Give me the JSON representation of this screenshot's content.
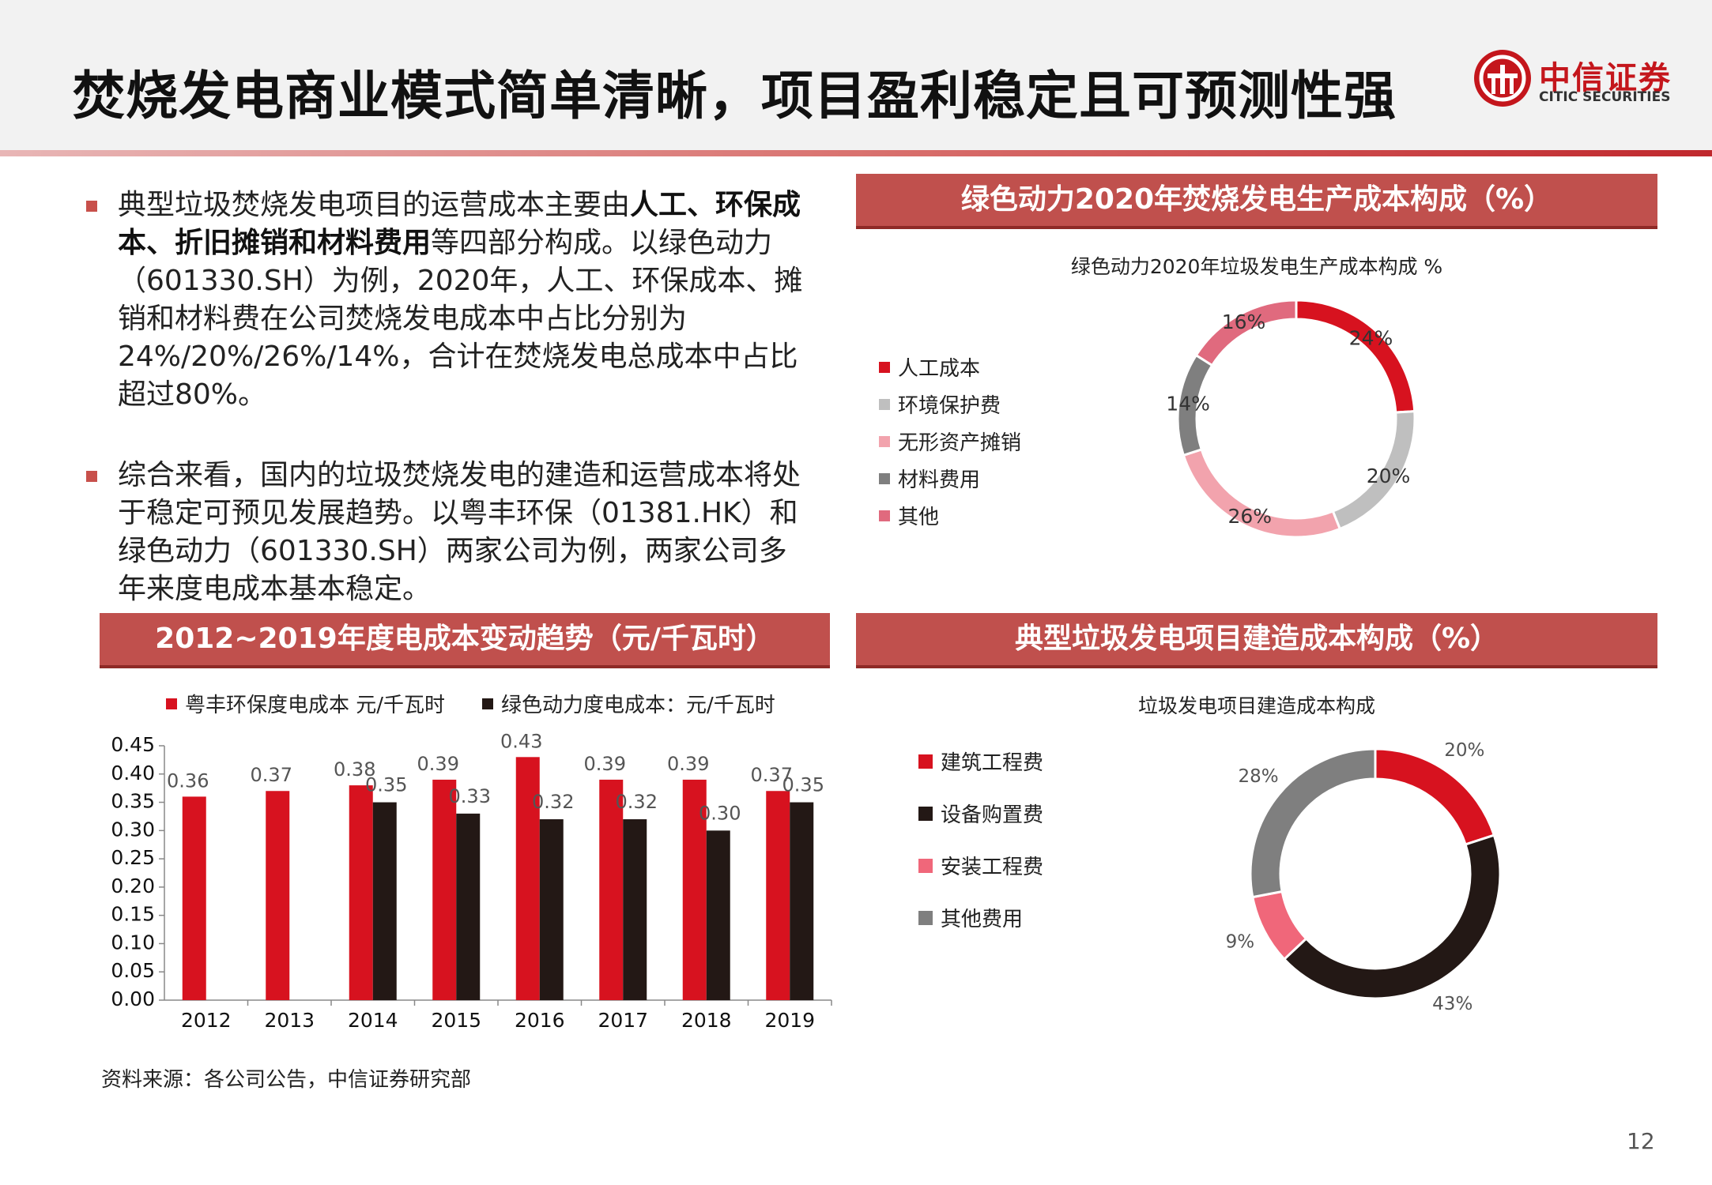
{
  "page": {
    "title": "焚烧发电商业模式简单清晰，项目盈利稳定且可预测性强",
    "page_number": "12",
    "source": "资料来源：各公司公告，中信证券研究部"
  },
  "logo": {
    "name_cn": "中信证券",
    "name_en": "CITIC SECURITIES",
    "brand_color": "#c4161c"
  },
  "bullets": [
    {
      "parts": [
        {
          "t": "典型垃圾焚烧发电项目的运营成本主要由",
          "b": false
        },
        {
          "t": "人工、环保成本、折旧摊销和材料费用",
          "b": true
        },
        {
          "t": "等四部分构成。以绿色动力（601330.SH）为例，2020年，人工、环保成本、摊销和材料费在公司焚烧发电成本中占比分别为24%/20%/26%/14%，合计在焚烧发电总成本中占比超过80%。",
          "b": false
        }
      ]
    },
    {
      "parts": [
        {
          "t": "综合来看，国内的垃圾焚烧发电的建造和运营成本将处于稳定可预见发展趋势。以粤丰环保（01381.HK）和绿色动力（601330.SH）两家公司为例，两家公司多年来度电成本基本稳定。",
          "b": false
        }
      ]
    }
  ],
  "sections": {
    "donut1_header": "绿色动力2020年焚烧发电生产成本构成（%）",
    "bar_header": "2012~2019年度电成本变动趋势（元/千瓦时）",
    "donut2_header": "典型垃圾发电项目建造成本构成（%）"
  },
  "chart_data": [
    {
      "type": "pie",
      "donut": true,
      "title": "绿色动力2020年垃圾发电生产成本构成 %",
      "legend_position": "left",
      "labels": [
        "人工成本",
        "环境保护费",
        "无形资产摊销",
        "材料费用",
        "其他"
      ],
      "values": [
        24,
        20,
        26,
        14,
        16
      ],
      "value_labels": [
        "24%",
        "20%",
        "26%",
        "14%",
        "16%"
      ],
      "colors": [
        "#d7121f",
        "#bfbfbf",
        "#f2a3ad",
        "#7f7f7f",
        "#e06a7e"
      ]
    },
    {
      "type": "bar",
      "title": "",
      "categories": [
        "2012",
        "2013",
        "2014",
        "2015",
        "2016",
        "2017",
        "2018",
        "2019"
      ],
      "series": [
        {
          "name": "粤丰环保度电成本 元/千瓦时",
          "color": "#d7121f",
          "values": [
            0.36,
            0.37,
            0.38,
            0.39,
            0.43,
            0.39,
            0.39,
            0.37
          ],
          "labels": [
            "0.36",
            "0.37",
            "0.38",
            "0.39",
            "0.43",
            "0.39",
            "0.39",
            "0.37"
          ]
        },
        {
          "name": "绿色动力度电成本：元/千瓦时",
          "color": "#231815",
          "values": [
            null,
            null,
            0.35,
            0.33,
            0.32,
            0.32,
            0.3,
            0.35
          ],
          "labels": [
            null,
            null,
            "0.35",
            "0.33",
            "0.32",
            "0.32",
            "0.30",
            "0.35"
          ]
        }
      ],
      "ylim": [
        0,
        0.45
      ],
      "yticks": [
        "0.00",
        "0.05",
        "0.10",
        "0.15",
        "0.20",
        "0.25",
        "0.30",
        "0.35",
        "0.40",
        "0.45"
      ],
      "legend_position": "top",
      "grid": false
    },
    {
      "type": "pie",
      "donut": true,
      "title": "垃圾发电项目建造成本构成",
      "legend_position": "left",
      "labels": [
        "建筑工程费",
        "设备购置费",
        "安装工程费",
        "其他费用"
      ],
      "values": [
        20,
        43,
        9,
        28
      ],
      "value_labels": [
        "20%",
        "43%",
        "9%",
        "28%"
      ],
      "colors": [
        "#d7121f",
        "#231815",
        "#f0677a",
        "#7f7f7f"
      ]
    }
  ]
}
